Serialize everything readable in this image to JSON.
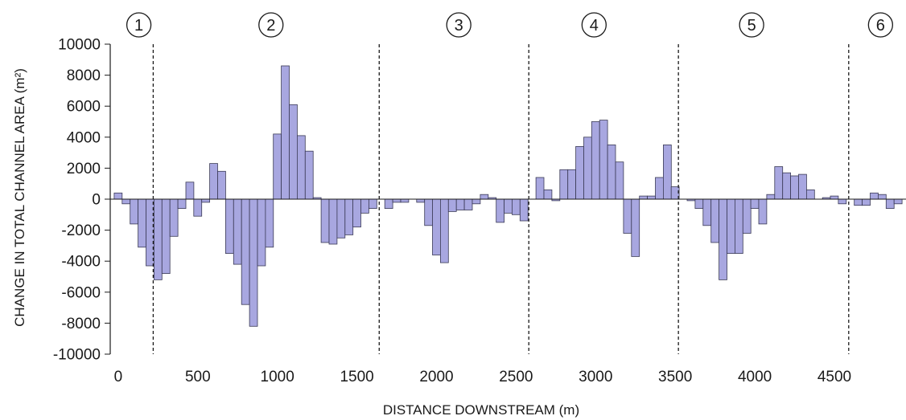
{
  "chart_data": {
    "type": "bar",
    "xlabel": "DISTANCE DOWNSTREAM (m)",
    "ylabel": "CHANGE IN TOTAL CHANNEL AREA (m²)",
    "xlim": [
      -50,
      4950
    ],
    "ylim": [
      -10000,
      10000
    ],
    "bar_width": 50,
    "bar_color": "#a8a7e0",
    "bar_stroke": "#3a3a55",
    "xticks": [
      0,
      500,
      1000,
      1500,
      2000,
      2500,
      3000,
      3500,
      4000,
      4500
    ],
    "yticks": [
      10000,
      8000,
      6000,
      4000,
      2000,
      0,
      -2000,
      -4000,
      -6000,
      -8000,
      -10000
    ],
    "x": [
      0,
      50,
      100,
      150,
      200,
      250,
      300,
      350,
      400,
      450,
      500,
      550,
      600,
      650,
      700,
      750,
      800,
      850,
      900,
      950,
      1000,
      1050,
      1100,
      1150,
      1200,
      1250,
      1300,
      1350,
      1400,
      1450,
      1500,
      1550,
      1600,
      1650,
      1700,
      1750,
      1800,
      1850,
      1900,
      1950,
      2000,
      2050,
      2100,
      2150,
      2200,
      2250,
      2300,
      2350,
      2400,
      2450,
      2500,
      2550,
      2600,
      2650,
      2700,
      2750,
      2800,
      2850,
      2900,
      2950,
      3000,
      3050,
      3100,
      3150,
      3200,
      3250,
      3300,
      3350,
      3400,
      3450,
      3500,
      3550,
      3600,
      3650,
      3700,
      3750,
      3800,
      3850,
      3900,
      3950,
      4000,
      4050,
      4100,
      4150,
      4200,
      4250,
      4300,
      4350,
      4400,
      4450,
      4500,
      4550,
      4600,
      4650,
      4700,
      4750,
      4800,
      4850,
      4900
    ],
    "values": [
      400,
      -300,
      -1600,
      -3100,
      -4300,
      -5200,
      -4800,
      -2400,
      -600,
      1100,
      -1100,
      -200,
      2300,
      1800,
      -3500,
      -4200,
      -6800,
      -8200,
      -4300,
      -3100,
      4200,
      8600,
      6100,
      4100,
      3100,
      100,
      -2800,
      -2900,
      -2500,
      -2300,
      -1800,
      -900,
      -600,
      0,
      -600,
      -200,
      -200,
      0,
      -200,
      -1700,
      -3600,
      -4100,
      -800,
      -700,
      -700,
      -300,
      300,
      100,
      -1500,
      -900,
      -1000,
      -1400,
      0,
      1400,
      600,
      -100,
      1900,
      1900,
      3400,
      4000,
      5000,
      5100,
      3500,
      2400,
      -2200,
      -3700,
      200,
      200,
      1400,
      3500,
      800,
      0,
      -100,
      -600,
      -1700,
      -2800,
      -5200,
      -3500,
      -3500,
      -2200,
      -600,
      -1600,
      300,
      2100,
      1700,
      1500,
      1600,
      600,
      0,
      100,
      200,
      -300,
      0,
      -400,
      -400,
      400,
      300,
      -600,
      -300
    ],
    "zone_boundaries": [
      220,
      1640,
      2580,
      3520,
      4590
    ],
    "zone_labels": [
      {
        "label": "1",
        "x": 130
      },
      {
        "label": "2",
        "x": 960
      },
      {
        "label": "3",
        "x": 2140
      },
      {
        "label": "4",
        "x": 2990
      },
      {
        "label": "5",
        "x": 3980
      },
      {
        "label": "6",
        "x": 4790
      }
    ]
  }
}
